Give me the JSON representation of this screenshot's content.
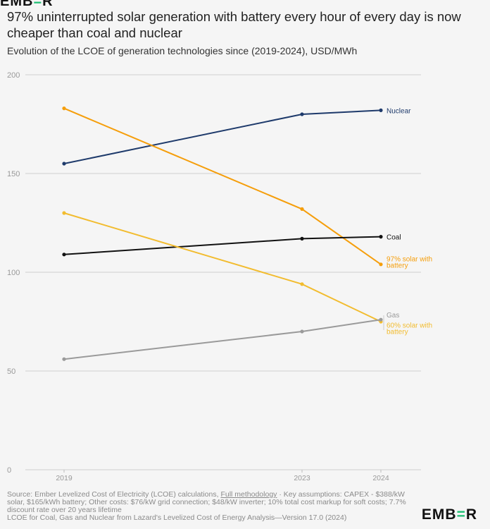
{
  "header": {
    "logo_left": "EMB",
    "logo_mid": "=",
    "logo_right": "R"
  },
  "chart_data": {
    "type": "line",
    "title": "97% uninterrupted solar generation with battery every hour of every day is now cheaper than coal and nuclear",
    "subtitle": "Evolution of the LCOE of generation technologies since (2019-2024), USD/MWh",
    "x": [
      2019,
      2023,
      2024
    ],
    "x_tick_labels": [
      "2019",
      "2023",
      "2024"
    ],
    "xlim": [
      2019,
      2024
    ],
    "ylim": [
      0,
      200
    ],
    "y_ticks": [
      0,
      50,
      100,
      150,
      200
    ],
    "y_tick_labels": [
      "0",
      "50",
      "100",
      "150",
      "200"
    ],
    "grid": "horizontal",
    "legend": "end-labels",
    "series": [
      {
        "name": "Nuclear",
        "label_lines": [
          "Nuclear"
        ],
        "color": "#1e3a6b",
        "values": [
          155,
          180,
          182
        ]
      },
      {
        "name": "97% solar with battery",
        "label_lines": [
          "97% solar with",
          "battery"
        ],
        "color": "#f59e0b",
        "values": [
          183,
          132,
          104
        ]
      },
      {
        "name": "Coal",
        "label_lines": [
          "Coal"
        ],
        "color": "#111111",
        "values": [
          109,
          117,
          118
        ]
      },
      {
        "name": "60% solar with battery",
        "label_lines": [
          "60% solar with",
          "battery"
        ],
        "color": "#f2bc2f",
        "values": [
          130,
          94,
          75
        ]
      },
      {
        "name": "Gas",
        "label_lines": [
          "Gas"
        ],
        "color": "#9a9a9a",
        "values": [
          56,
          70,
          76
        ]
      }
    ]
  },
  "footer": {
    "source_line1_pre": "Source: Ember Levelized Cost of Electricity (LCOE) calculations, ",
    "source_link": "Full methodology",
    "source_line1_post": " · Key assumptions: CAPEX - $388/kW solar, $165/kWh battery; Other costs: $76/kW grid connection; $48/kW inverter; 10% total cost markup for soft costs; 7.7% discount rate over 20 years lifetime",
    "source_line2": "LCOE for Coal, Gas and Nuclear from Lazard's Levelized Cost of Energy Analysis—Version 17.0 (2024)"
  },
  "brand": {
    "left": "EMB",
    "mid": "=",
    "right": "R"
  }
}
